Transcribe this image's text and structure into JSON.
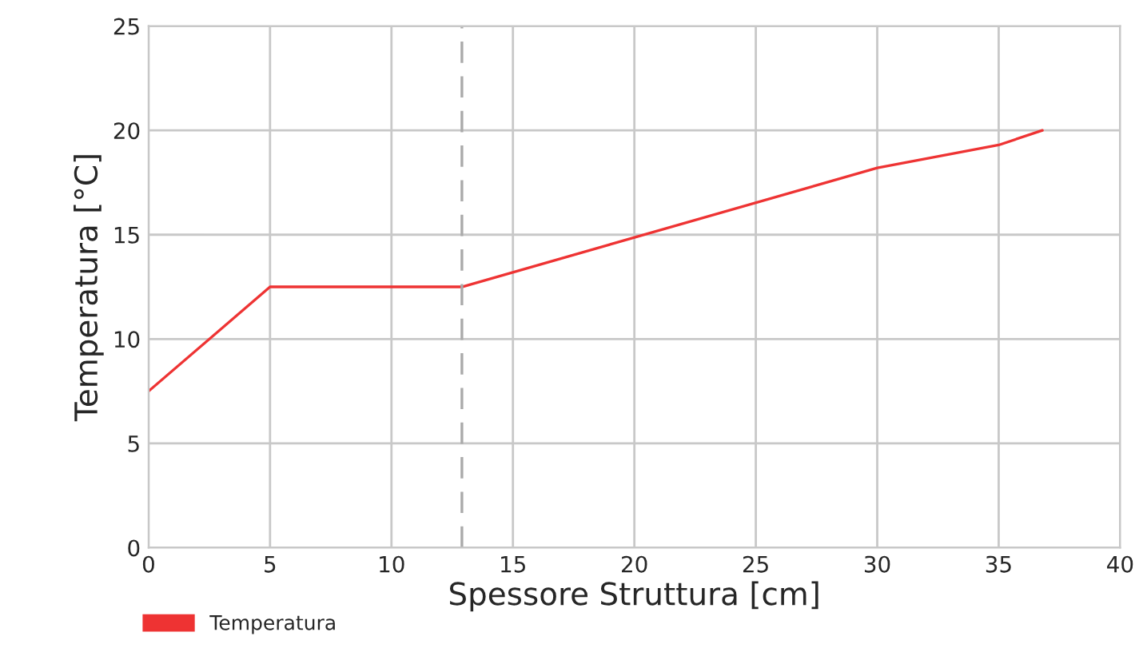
{
  "chart_data": {
    "type": "line",
    "xlabel": "Spessore Struttura [cm]",
    "ylabel": "Temperatura [°C]",
    "x": [
      0,
      5,
      12.9,
      30,
      35,
      36.8
    ],
    "series": [
      {
        "name": "Temperatura",
        "color": "#ee3333",
        "values": [
          7.5,
          12.5,
          12.5,
          18.2,
          19.3,
          20
        ]
      }
    ],
    "xlim": [
      0,
      40
    ],
    "ylim": [
      0,
      25
    ],
    "xticks": [
      0,
      5,
      10,
      15,
      20,
      25,
      30,
      35,
      40
    ],
    "yticks": [
      0,
      5,
      10,
      15,
      20,
      25
    ],
    "grid": true,
    "legend": "bottom left",
    "line_style": "solid",
    "marker": "none",
    "ref_lines": [
      {
        "axis": "x",
        "value": 12.9,
        "color": "#aaaaaa",
        "line_style": "dashed"
      }
    ]
  }
}
